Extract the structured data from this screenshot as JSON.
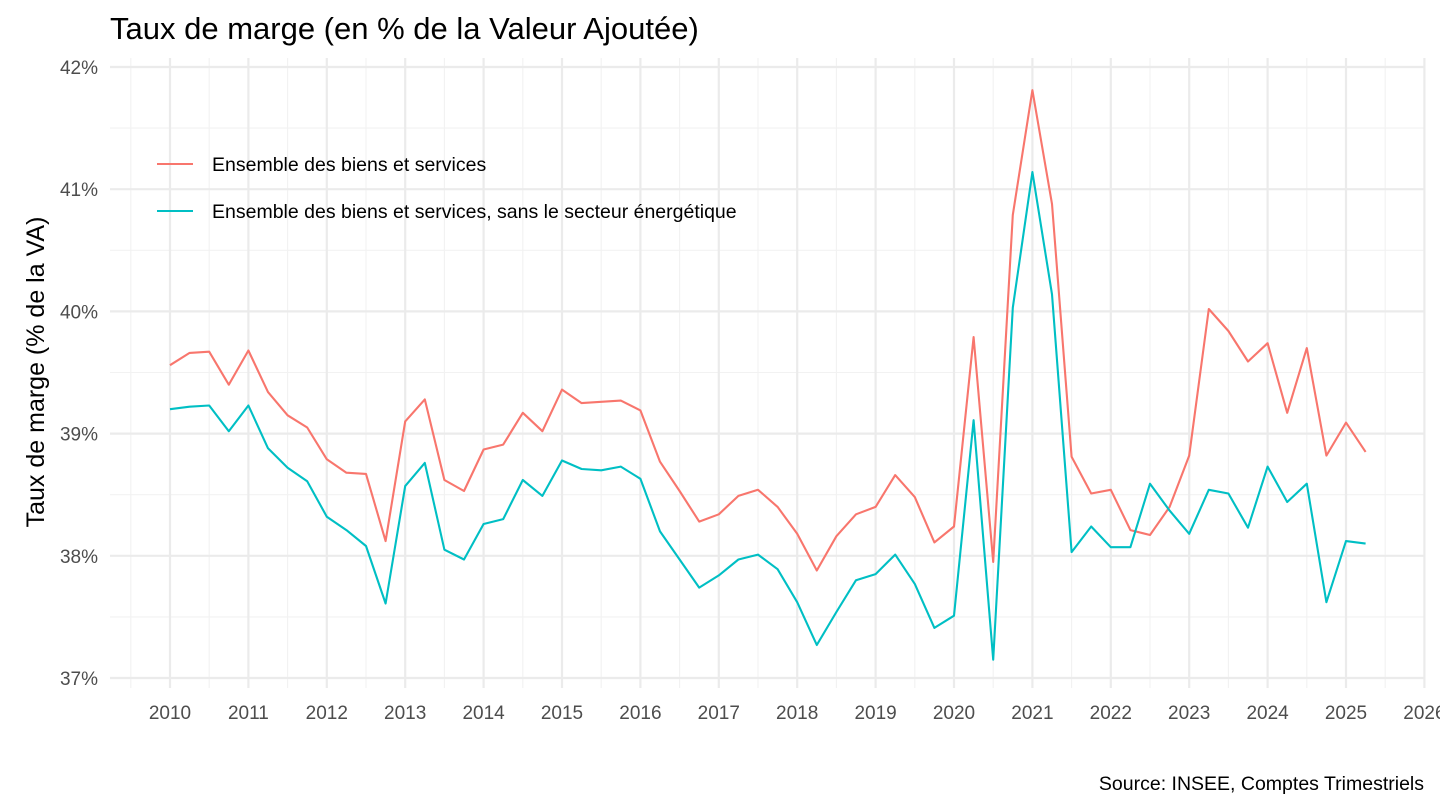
{
  "chart_data": {
    "type": "line",
    "title": "Taux de marge (en % de la Valeur Ajoutée)",
    "xlabel": "",
    "ylabel": "Taux de marge (% de la VA)",
    "caption": "Source: INSEE, Comptes Trimestriels",
    "xlim": [
      2009.25,
      2026
    ],
    "ylim": [
      37,
      42
    ],
    "x_ticks": [
      2010,
      2011,
      2012,
      2013,
      2014,
      2015,
      2016,
      2017,
      2018,
      2019,
      2020,
      2021,
      2022,
      2023,
      2024,
      2025,
      2026
    ],
    "x_tick_labels": [
      "2010",
      "2011",
      "2012",
      "2013",
      "2014",
      "2015",
      "2016",
      "2017",
      "2018",
      "2019",
      "2020",
      "2021",
      "2022",
      "2023",
      "2024",
      "2025",
      "2026"
    ],
    "y_ticks": [
      37,
      38,
      39,
      40,
      41,
      42
    ],
    "y_tick_labels": [
      "37%",
      "38%",
      "39%",
      "40%",
      "41%",
      "42%"
    ],
    "grid": true,
    "legend_position": "top-left-inside",
    "x": [
      "2010Q1",
      "2010Q2",
      "2010Q3",
      "2010Q4",
      "2011Q1",
      "2011Q2",
      "2011Q3",
      "2011Q4",
      "2012Q1",
      "2012Q2",
      "2012Q3",
      "2012Q4",
      "2013Q1",
      "2013Q2",
      "2013Q3",
      "2013Q4",
      "2014Q1",
      "2014Q2",
      "2014Q3",
      "2014Q4",
      "2015Q1",
      "2015Q2",
      "2015Q3",
      "2015Q4",
      "2016Q1",
      "2016Q2",
      "2016Q3",
      "2016Q4",
      "2017Q1",
      "2017Q2",
      "2017Q3",
      "2017Q4",
      "2018Q1",
      "2018Q2",
      "2018Q3",
      "2018Q4",
      "2019Q1",
      "2019Q2",
      "2019Q3",
      "2019Q4",
      "2020Q1",
      "2020Q2",
      "2020Q3",
      "2020Q4",
      "2021Q1",
      "2021Q2",
      "2021Q3",
      "2021Q4",
      "2022Q1",
      "2022Q2",
      "2022Q3",
      "2022Q4",
      "2023Q1",
      "2023Q2",
      "2023Q3",
      "2023Q4",
      "2024Q1",
      "2024Q2",
      "2024Q3",
      "2024Q4",
      "2025Q1",
      "2025Q2"
    ],
    "x_numeric_start": 2010,
    "x_step": 0.25,
    "series": [
      {
        "name": "Ensemble des biens et services",
        "color": "#F8766D",
        "values": [
          39.56,
          39.66,
          39.67,
          39.4,
          39.68,
          39.34,
          39.15,
          39.05,
          38.79,
          38.68,
          38.67,
          38.12,
          39.1,
          39.28,
          38.62,
          38.53,
          38.87,
          38.91,
          39.17,
          39.02,
          39.36,
          39.25,
          39.26,
          39.27,
          39.19,
          38.77,
          38.53,
          38.28,
          38.34,
          38.49,
          38.54,
          38.4,
          38.18,
          37.88,
          38.16,
          38.34,
          38.4,
          38.66,
          38.48,
          38.11,
          38.24,
          39.79,
          37.95,
          40.79,
          41.81,
          40.88,
          38.81,
          38.51,
          38.54,
          38.21,
          38.17,
          38.4,
          38.82,
          40.02,
          39.84,
          39.59,
          39.74,
          39.17,
          39.7,
          38.82,
          39.09,
          38.85
        ]
      },
      {
        "name": "Ensemble des biens et services, sans le secteur énergétique",
        "color": "#00BFC4",
        "values": [
          39.2,
          39.22,
          39.23,
          39.02,
          39.23,
          38.88,
          38.72,
          38.61,
          38.32,
          38.21,
          38.08,
          37.61,
          38.57,
          38.76,
          38.05,
          37.97,
          38.26,
          38.3,
          38.62,
          38.49,
          38.78,
          38.71,
          38.7,
          38.73,
          38.63,
          38.2,
          37.97,
          37.74,
          37.84,
          37.97,
          38.01,
          37.89,
          37.62,
          37.27,
          37.54,
          37.8,
          37.85,
          38.01,
          37.77,
          37.41,
          37.51,
          39.11,
          37.15,
          40.03,
          41.14,
          40.14,
          38.03,
          38.24,
          38.07,
          38.07,
          38.59,
          38.37,
          38.18,
          38.54,
          38.51,
          38.23,
          38.73,
          38.44,
          38.59,
          37.62,
          38.12,
          38.1
        ]
      }
    ]
  }
}
